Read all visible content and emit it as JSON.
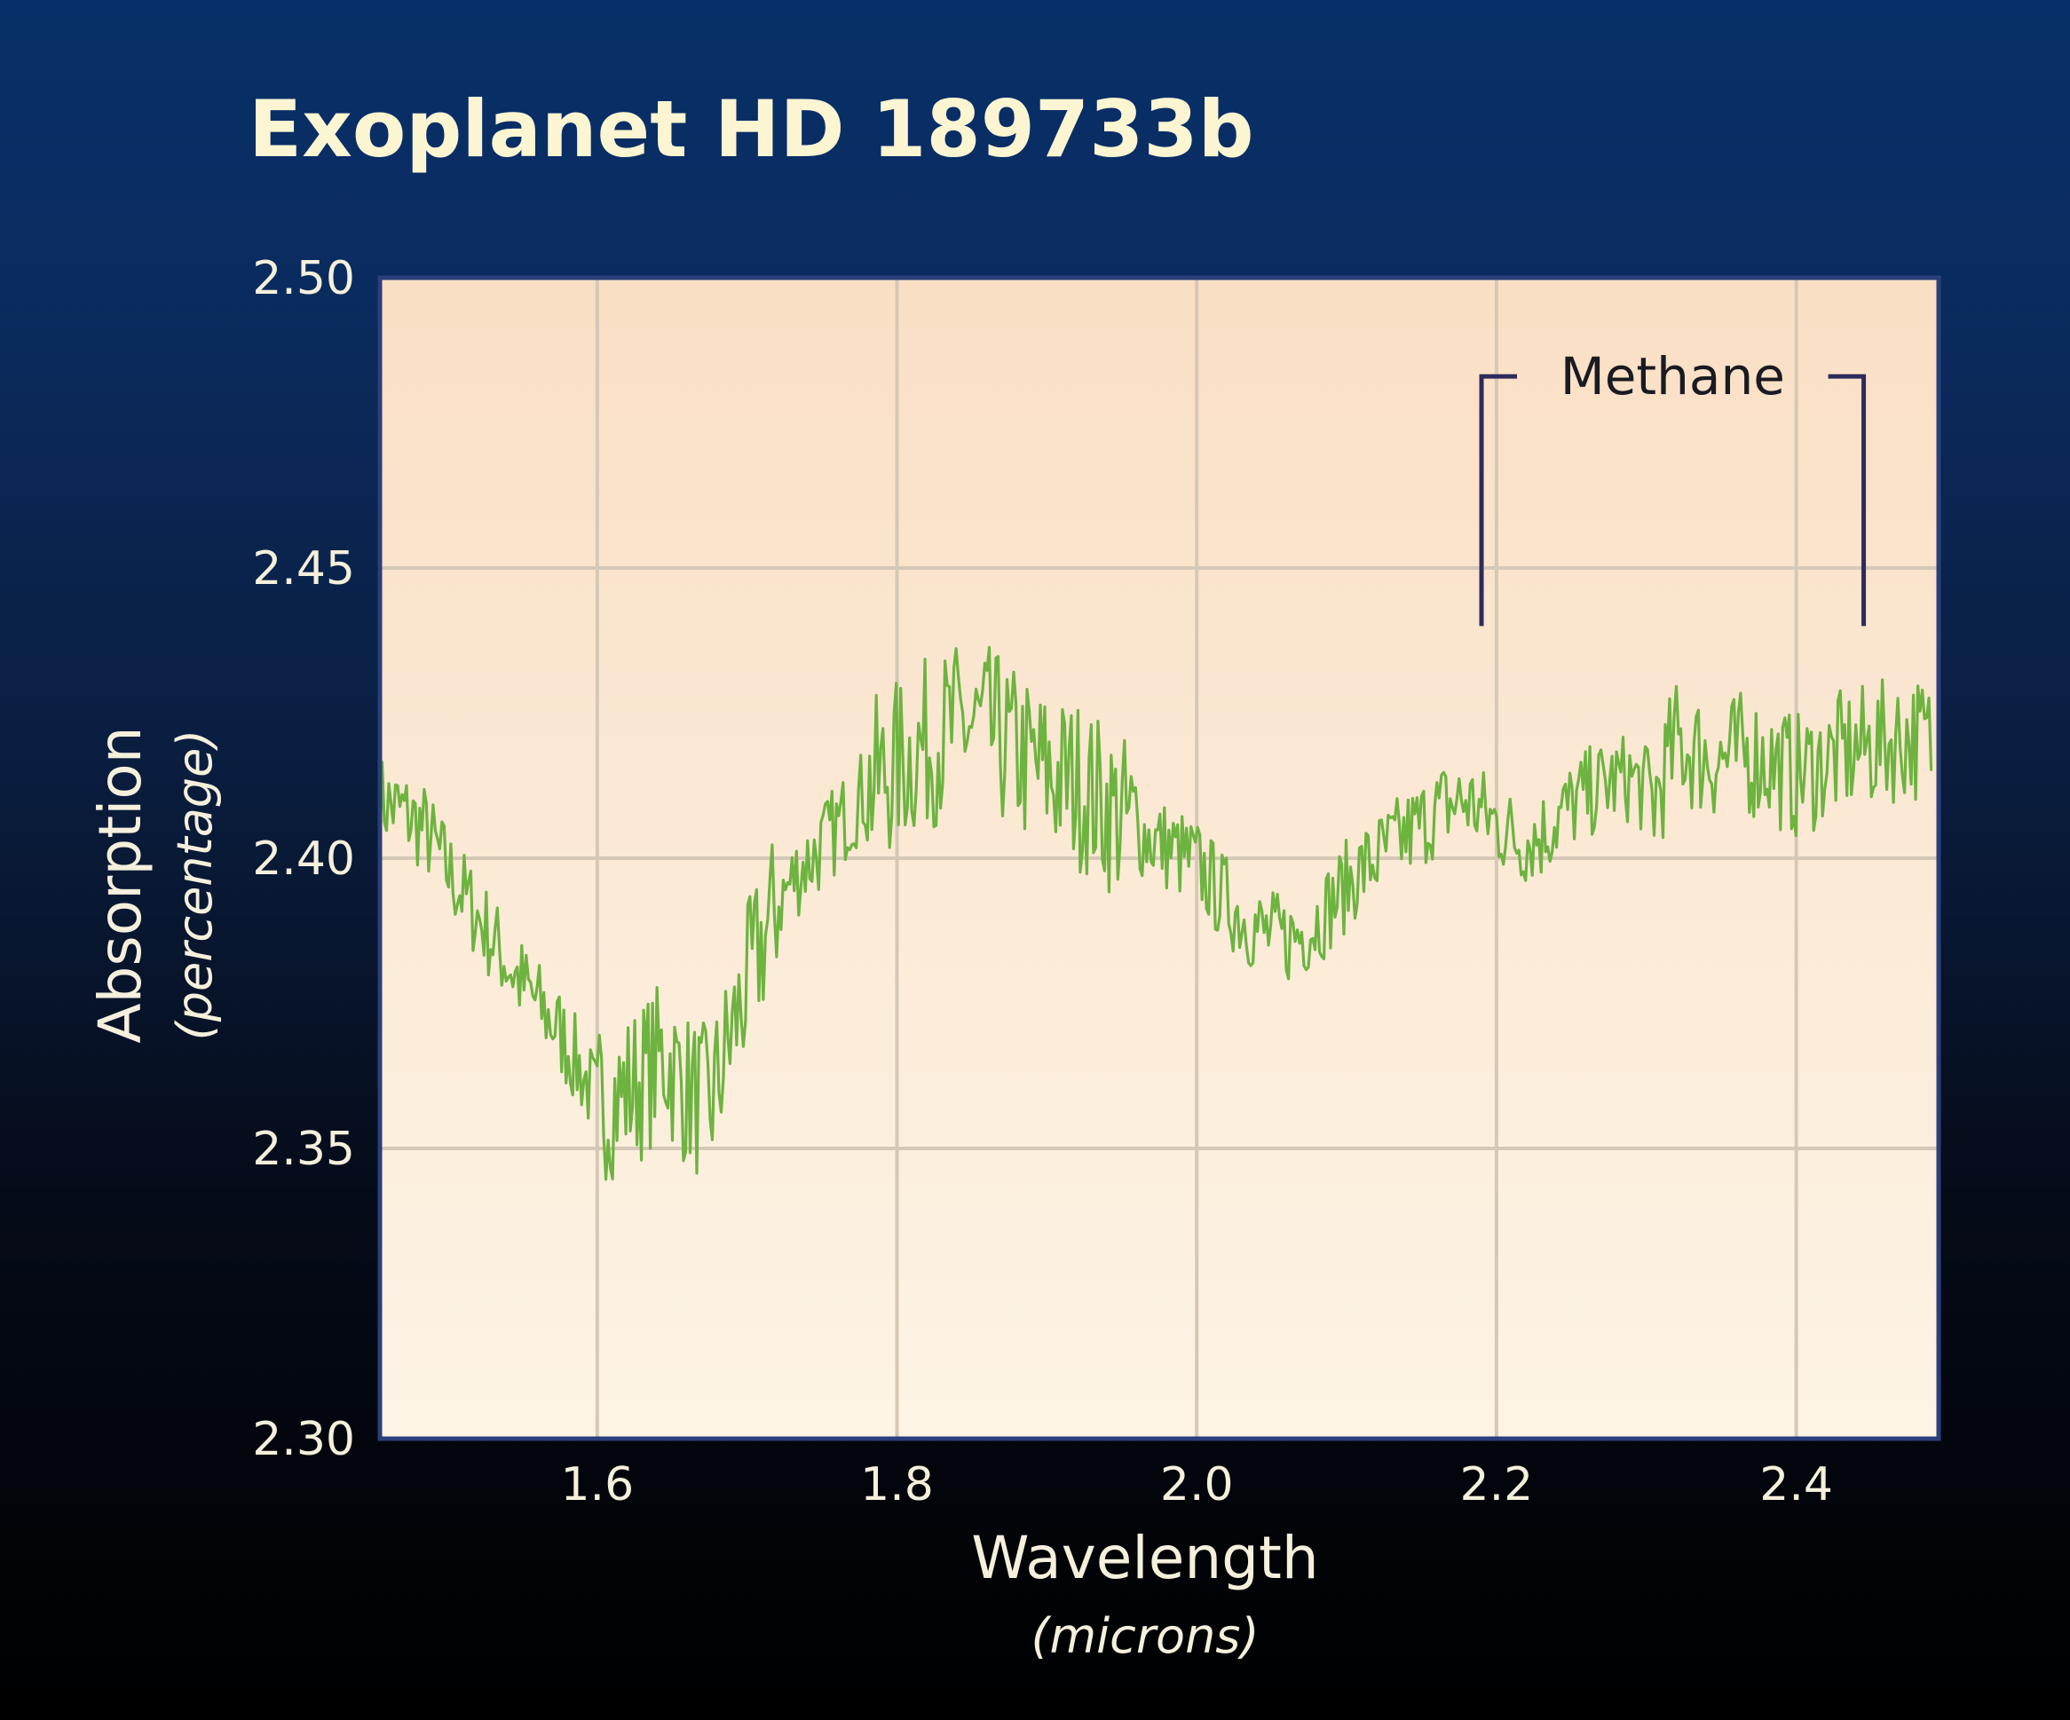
{
  "chart_data": {
    "type": "line",
    "title": "Exoplanet HD 189733b",
    "xlabel": "Wavelength",
    "xlabel_unit": "(microns)",
    "ylabel": "Absorption",
    "ylabel_unit": "(percentage)",
    "xlim": [
      1.455,
      2.495
    ],
    "ylim": [
      2.3,
      2.5
    ],
    "xticks": [
      "1.6",
      "1.8",
      "2.0",
      "2.2",
      "2.4"
    ],
    "xtick_values": [
      1.6,
      1.8,
      2.0,
      2.2,
      2.4
    ],
    "yticks": [
      "2.30",
      "2.35",
      "2.40",
      "2.45",
      "2.50"
    ],
    "ytick_values": [
      2.3,
      2.35,
      2.4,
      2.45,
      2.5
    ],
    "grid": true,
    "legend": false,
    "colors": {
      "line": "#6db33f",
      "plot_bg_top": "#f9dfc4",
      "plot_bg_bottom": "#fdf4e6",
      "frame": "#2b3f7a",
      "grid": "#d6c8b6",
      "bracket": "#2e2a5c"
    },
    "series": [
      {
        "x": [
          1.455,
          1.47,
          1.485,
          1.5,
          1.515,
          1.53,
          1.545,
          1.56,
          1.575,
          1.59,
          1.6,
          1.615,
          1.63,
          1.645,
          1.66,
          1.675,
          1.69,
          1.705,
          1.72,
          1.735,
          1.75,
          1.765,
          1.78,
          1.8,
          1.815,
          1.83,
          1.845,
          1.86,
          1.875,
          1.89,
          1.905,
          1.92,
          1.935,
          1.95,
          1.965,
          1.98,
          2.0,
          2.015,
          2.03,
          2.045,
          2.06,
          2.075,
          2.09,
          2.105,
          2.12,
          2.135,
          2.15,
          2.165,
          2.18,
          2.2,
          2.215,
          2.23,
          2.245,
          2.26,
          2.275,
          2.29,
          2.305,
          2.32,
          2.335,
          2.35,
          2.365,
          2.38,
          2.4,
          2.415,
          2.43,
          2.445,
          2.46,
          2.475,
          2.49
        ],
        "values": [
          2.41,
          2.408,
          2.405,
          2.398,
          2.392,
          2.386,
          2.38,
          2.375,
          2.37,
          2.363,
          2.358,
          2.359,
          2.362,
          2.366,
          2.36,
          2.357,
          2.37,
          2.382,
          2.392,
          2.398,
          2.402,
          2.407,
          2.412,
          2.416,
          2.419,
          2.421,
          2.423,
          2.422,
          2.419,
          2.416,
          2.414,
          2.413,
          2.41,
          2.407,
          2.404,
          2.402,
          2.399,
          2.394,
          2.39,
          2.387,
          2.386,
          2.388,
          2.392,
          2.397,
          2.4,
          2.403,
          2.406,
          2.409,
          2.41,
          2.406,
          2.403,
          2.404,
          2.408,
          2.411,
          2.413,
          2.414,
          2.41,
          2.42,
          2.418,
          2.417,
          2.418,
          2.417,
          2.414,
          2.416,
          2.418,
          2.419,
          2.42,
          2.421,
          2.42
        ]
      }
    ],
    "annotations": [
      {
        "label": "Methane",
        "x_start": 2.19,
        "x_end": 2.445,
        "y": 2.483
      }
    ]
  }
}
